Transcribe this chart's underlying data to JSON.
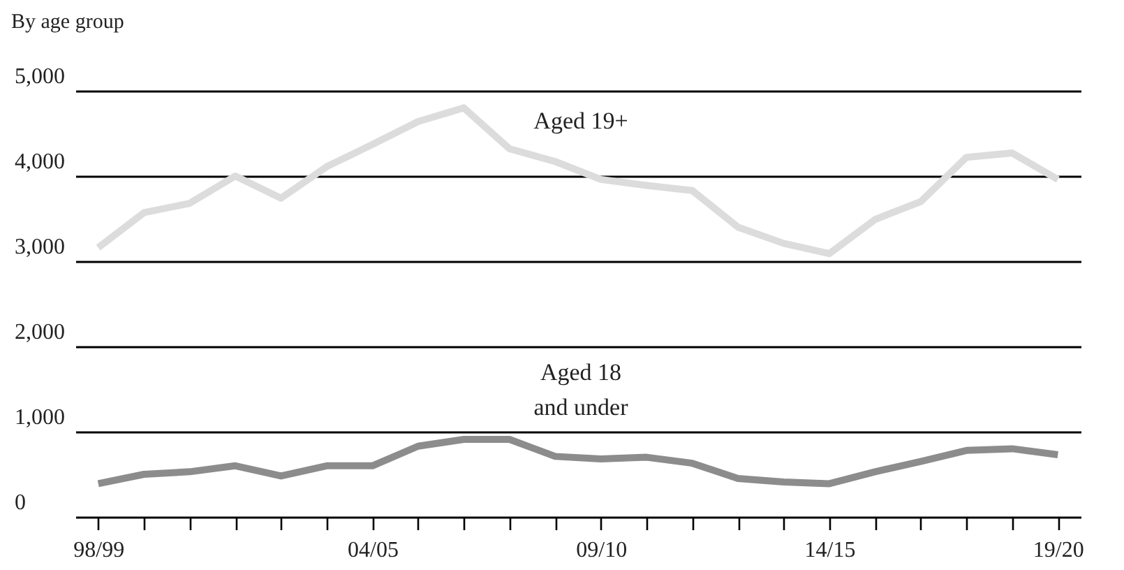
{
  "chart_data": {
    "type": "line",
    "title": "By age group",
    "categories": [
      "98/99",
      null,
      null,
      null,
      null,
      null,
      "04/05",
      null,
      null,
      null,
      null,
      "09/10",
      null,
      null,
      null,
      null,
      "14/15",
      null,
      null,
      null,
      null,
      "19/20"
    ],
    "series": [
      {
        "color": "#dcdcdc",
        "values": [
          3160,
          3570,
          3680,
          4000,
          3740,
          4110,
          4370,
          4640,
          4800,
          4320,
          4170,
          3960,
          3890,
          3830,
          3400,
          3210,
          3090,
          3490,
          3700,
          4220,
          4270,
          3960
        ]
      },
      {
        "color": "#8c8c8c",
        "values": [
          390,
          500,
          530,
          600,
          480,
          600,
          600,
          830,
          910,
          910,
          710,
          680,
          700,
          630,
          450,
          410,
          390,
          530,
          650,
          780,
          800,
          730
        ]
      }
    ],
    "annotations": [
      "Aged 19+",
      "Aged 18",
      "and under"
    ],
    "ylim": [
      0,
      5000
    ],
    "yticks": [
      0,
      {
        "value": 1000,
        "label": "1,000"
      },
      {
        "value": 2000,
        "label": "2,000"
      },
      {
        "value": 3000,
        "label": "3,000"
      },
      {
        "value": 4000,
        "label": "4,000"
      },
      {
        "value": 5000,
        "label": "5,000"
      }
    ],
    "grid": "y",
    "marker": "none",
    "line_style": "solid"
  }
}
